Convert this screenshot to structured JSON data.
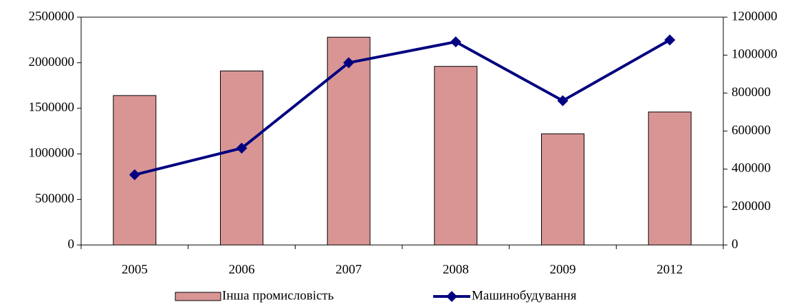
{
  "chart_data": {
    "type": "bar-line",
    "categories": [
      "2005",
      "2006",
      "2007",
      "2008",
      "2009",
      "2012"
    ],
    "series": [
      {
        "name": "Інша промисловість",
        "type": "bar",
        "color": "#d99594",
        "values": [
          1640000,
          1910000,
          2280000,
          1960000,
          1220000,
          1460000
        ]
      },
      {
        "name": "Машинобудування",
        "type": "line",
        "axis": "y2",
        "color": "#000080",
        "values": [
          370000,
          510000,
          960000,
          1070000,
          760000,
          1080000
        ]
      }
    ],
    "ylim": [
      0,
      2500000
    ],
    "yticks": [
      0,
      500000,
      1000000,
      1500000,
      2000000,
      2500000
    ],
    "y2lim": [
      0,
      1200000
    ],
    "y2ticks": [
      0,
      200000,
      400000,
      600000,
      800000,
      1000000,
      1200000
    ],
    "legend": "bottom"
  }
}
